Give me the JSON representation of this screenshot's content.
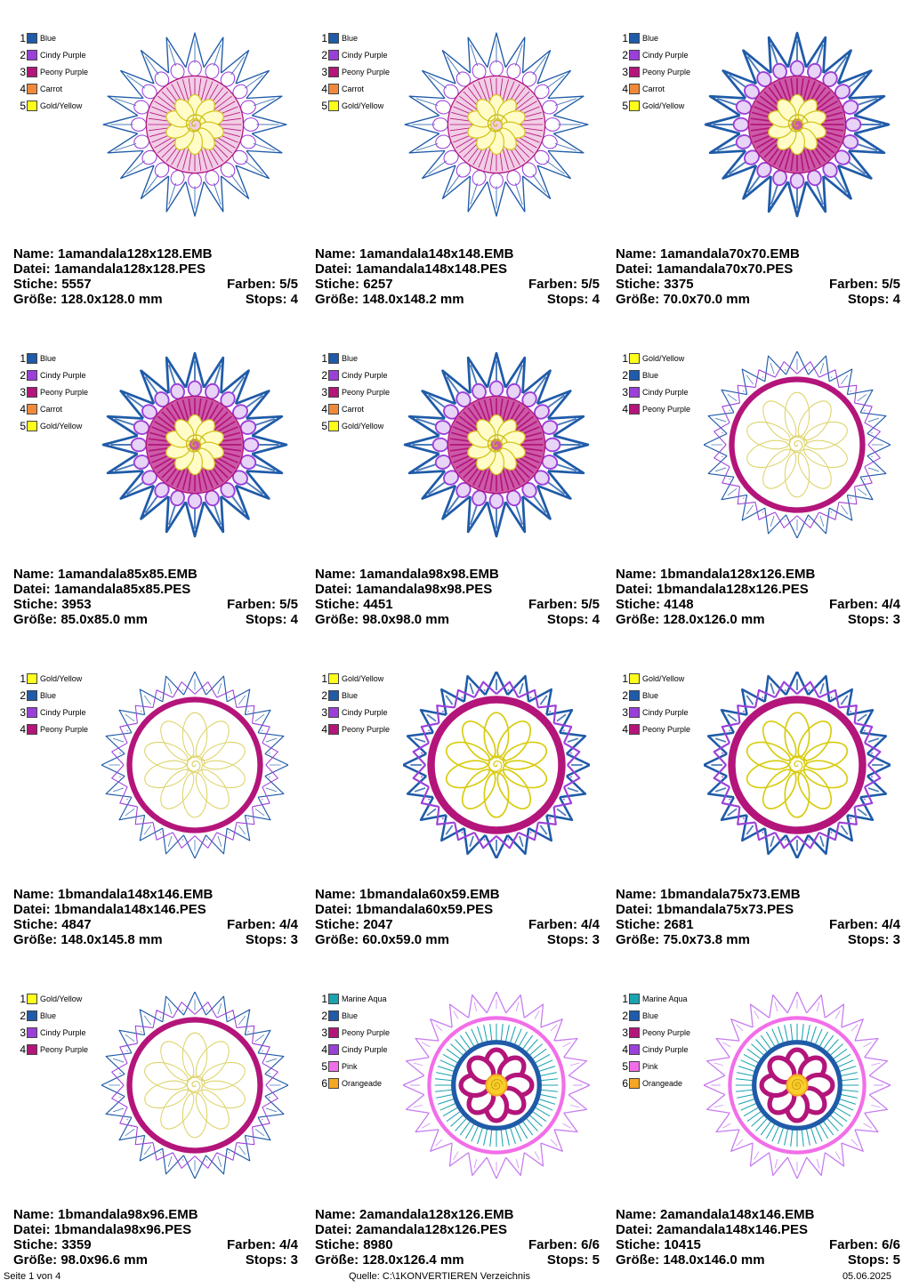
{
  "labels": {
    "name": "Name:",
    "file": "Datei:",
    "stitches": "Stiche:",
    "colors": "Farben:",
    "size": "Größe:",
    "stops": "Stops:"
  },
  "palette": {
    "Blue": "#1f5ba8",
    "Cindy Purple": "#9b3fd9",
    "Peony Purple": "#b3157a",
    "Carrot": "#f08a3a",
    "Gold/Yellow": "#ffff1a",
    "Marine Aqua": "#1aa3b0",
    "Pink": "#f26ee8",
    "Orangeade": "#f5a623"
  },
  "designs": [
    {
      "name": "1amandala128x128.EMB",
      "file": "1amandala128x128.PES",
      "stitches": "5557",
      "colors": "5/5",
      "size": "128.0x128.0 mm",
      "stops": "4",
      "type": "a",
      "density": "light",
      "threads": [
        "Blue",
        "Cindy Purple",
        "Peony Purple",
        "Carrot",
        "Gold/Yellow"
      ]
    },
    {
      "name": "1amandala148x148.EMB",
      "file": "1amandala148x148.PES",
      "stitches": "6257",
      "colors": "5/5",
      "size": "148.0x148.2 mm",
      "stops": "4",
      "type": "a",
      "density": "light",
      "threads": [
        "Blue",
        "Cindy Purple",
        "Peony Purple",
        "Carrot",
        "Gold/Yellow"
      ]
    },
    {
      "name": "1amandala70x70.EMB",
      "file": "1amandala70x70.PES",
      "stitches": "3375",
      "colors": "5/5",
      "size": "70.0x70.0 mm",
      "stops": "4",
      "type": "a",
      "density": "dense",
      "threads": [
        "Blue",
        "Cindy Purple",
        "Peony Purple",
        "Carrot",
        "Gold/Yellow"
      ]
    },
    {
      "name": "1amandala85x85.EMB",
      "file": "1amandala85x85.PES",
      "stitches": "3953",
      "colors": "5/5",
      "size": "85.0x85.0 mm",
      "stops": "4",
      "type": "a",
      "density": "dense",
      "threads": [
        "Blue",
        "Cindy Purple",
        "Peony Purple",
        "Carrot",
        "Gold/Yellow"
      ]
    },
    {
      "name": "1amandala98x98.EMB",
      "file": "1amandala98x98.PES",
      "stitches": "4451",
      "colors": "5/5",
      "size": "98.0x98.0 mm",
      "stops": "4",
      "type": "a",
      "density": "dense",
      "threads": [
        "Blue",
        "Cindy Purple",
        "Peony Purple",
        "Carrot",
        "Gold/Yellow"
      ]
    },
    {
      "name": "1bmandala128x126.EMB",
      "file": "1bmandala128x126.PES",
      "stitches": "4148",
      "colors": "4/4",
      "size": "128.0x126.0 mm",
      "stops": "3",
      "type": "b",
      "density": "light",
      "threads": [
        "Gold/Yellow",
        "Blue",
        "Cindy Purple",
        "Peony Purple"
      ]
    },
    {
      "name": "1bmandala148x146.EMB",
      "file": "1bmandala148x146.PES",
      "stitches": "4847",
      "colors": "4/4",
      "size": "148.0x145.8 mm",
      "stops": "3",
      "type": "b",
      "density": "light",
      "threads": [
        "Gold/Yellow",
        "Blue",
        "Cindy Purple",
        "Peony Purple"
      ]
    },
    {
      "name": "1bmandala60x59.EMB",
      "file": "1bmandala60x59.PES",
      "stitches": "2047",
      "colors": "4/4",
      "size": "60.0x59.0 mm",
      "stops": "3",
      "type": "b",
      "density": "dense",
      "threads": [
        "Gold/Yellow",
        "Blue",
        "Cindy Purple",
        "Peony Purple"
      ]
    },
    {
      "name": "1bmandala75x73.EMB",
      "file": "1bmandala75x73.PES",
      "stitches": "2681",
      "colors": "4/4",
      "size": "75.0x73.8 mm",
      "stops": "3",
      "type": "b",
      "density": "dense",
      "threads": [
        "Gold/Yellow",
        "Blue",
        "Cindy Purple",
        "Peony Purple"
      ]
    },
    {
      "name": "1bmandala98x96.EMB",
      "file": "1bmandala98x96.PES",
      "stitches": "3359",
      "colors": "4/4",
      "size": "98.0x96.6 mm",
      "stops": "3",
      "type": "b",
      "density": "light",
      "threads": [
        "Gold/Yellow",
        "Blue",
        "Cindy Purple",
        "Peony Purple"
      ]
    },
    {
      "name": "2amandala128x126.EMB",
      "file": "2amandala128x126.PES",
      "stitches": "8980",
      "colors": "6/6",
      "size": "128.0x126.4 mm",
      "stops": "5",
      "type": "c",
      "density": "dense",
      "threads": [
        "Marine Aqua",
        "Blue",
        "Peony Purple",
        "Cindy Purple",
        "Pink",
        "Orangeade"
      ]
    },
    {
      "name": "2amandala148x146.EMB",
      "file": "2amandala148x146.PES",
      "stitches": "10415",
      "colors": "6/6",
      "size": "148.0x146.0 mm",
      "stops": "5",
      "type": "c",
      "density": "dense",
      "threads": [
        "Marine Aqua",
        "Blue",
        "Peony Purple",
        "Cindy Purple",
        "Pink",
        "Orangeade"
      ]
    }
  ],
  "footer": {
    "page": "Seite 1 von 4",
    "source": "Quelle: C:\\1KONVERTIEREN Verzeichnis",
    "date": "05.06.2025"
  }
}
